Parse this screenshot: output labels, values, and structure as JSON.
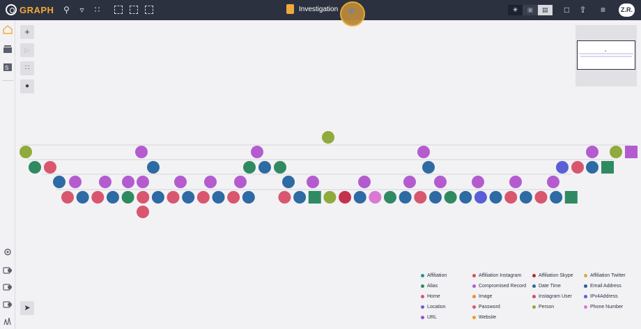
{
  "app": {
    "name": "GRAPH",
    "brand_color": "#f2a93b"
  },
  "header": {
    "title": "Investigation",
    "user_initials": "Z.R."
  },
  "colors": {
    "olive": "#8fab3c",
    "purple": "#b45ccf",
    "green": "#2f8a62",
    "pink": "#d9566f",
    "blue": "#2e6aa3",
    "indigo": "#5a5fd6",
    "crimson": "#c4334d",
    "orchid": "#d979d4"
  },
  "legend": [
    {
      "label": "Affiliation",
      "color": "#2a8f8a"
    },
    {
      "label": "Affiliation Instagram",
      "color": "#d94c5c"
    },
    {
      "label": "Affiliation Skype",
      "color": "#b32a3a"
    },
    {
      "label": "Affiliation Twitter",
      "color": "#c9b43a"
    },
    {
      "label": "Alias",
      "color": "#2f8a62"
    },
    {
      "label": "Compromised Record",
      "color": "#b45ccf"
    },
    {
      "label": "Date Time",
      "color": "#2e6aa3"
    },
    {
      "label": "Email Address",
      "color": "#2a5f8f"
    },
    {
      "label": "Home",
      "color": "#d9566f"
    },
    {
      "label": "Image",
      "color": "#f08a2a"
    },
    {
      "label": "Instagram User",
      "color": "#d94c5c"
    },
    {
      "label": "IPv4Address",
      "color": "#5a5fd6"
    },
    {
      "label": "Location",
      "color": "#6a5fd6"
    },
    {
      "label": "Password",
      "color": "#d9566f"
    },
    {
      "label": "Person",
      "color": "#8fab3c"
    },
    {
      "label": "Phone Number",
      "color": "#d979d4"
    },
    {
      "label": "URL",
      "color": "#9b4fd0"
    },
    {
      "label": "Website",
      "color": "#e8a02a"
    }
  ],
  "graph": {
    "rows": [
      {
        "kind": "root",
        "nodes": [
          "olive"
        ]
      },
      {
        "kind": "level1",
        "nodes": [
          "olive",
          "purple",
          "purple",
          "purple",
          "purple",
          "olive",
          "purple-square"
        ]
      },
      {
        "kind": "level2",
        "nodes": [
          "green",
          "pink",
          "blue",
          "green",
          "blue",
          "green",
          "blue",
          "indigo",
          "pink",
          "blue",
          "green-square"
        ]
      },
      {
        "kind": "level3",
        "nodes": [
          "blue",
          "purple",
          "purple",
          "purple",
          "purple",
          "purple",
          "purple",
          "purple",
          "blue",
          "purple",
          "purple",
          "purple",
          "purple",
          "purple",
          "purple",
          "purple"
        ]
      },
      {
        "kind": "level4",
        "nodes": [
          "pink",
          "blue",
          "pink",
          "blue",
          "green",
          "pink",
          "blue",
          "pink",
          "blue",
          "pink",
          "blue",
          "pink",
          "blue",
          "pink",
          "blue",
          "green-square",
          "olive",
          "crimson",
          "blue",
          "orchid",
          "green",
          "blue",
          "pink",
          "blue",
          "green",
          "blue",
          "indigo",
          "blue",
          "pink",
          "blue",
          "pink",
          "blue",
          "green-square"
        ]
      },
      {
        "kind": "level5",
        "nodes": [
          "pink"
        ]
      }
    ]
  }
}
